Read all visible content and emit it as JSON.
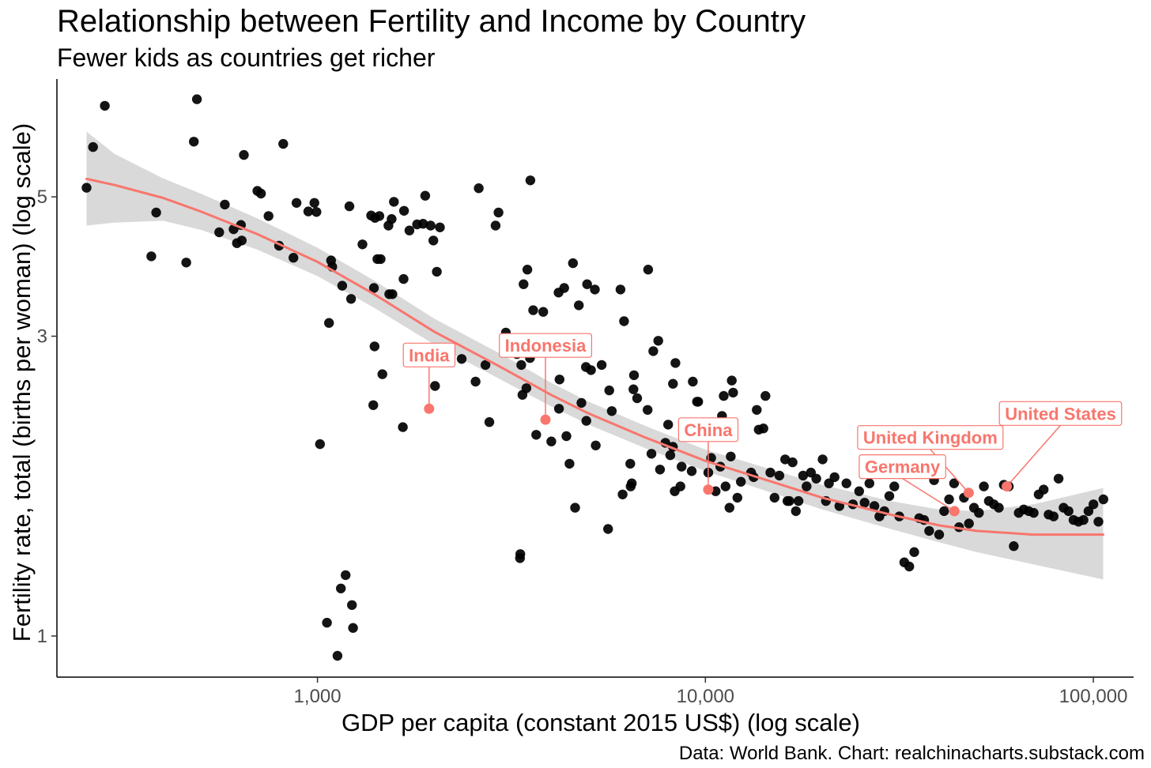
{
  "chart_data": {
    "type": "scatter",
    "title": "Relationship between Fertility and Income by Country",
    "subtitle": "Fewer kids as countries get richer",
    "xlabel": "GDP per capita (constant 2015 US$) (log scale)",
    "ylabel": "Fertility rate, total (births per woman) (log scale)",
    "caption": "Data: World Bank. Chart: realchinacharts.substack.com",
    "x_scale": "log",
    "y_scale": "log",
    "xlim": [
      213,
      127000
    ],
    "ylim": [
      0.86,
      7.7
    ],
    "x_ticks": [
      {
        "value": 1000,
        "label": "1,000"
      },
      {
        "value": 10000,
        "label": "10,000"
      },
      {
        "value": 100000,
        "label": "100,000"
      }
    ],
    "y_ticks": [
      {
        "value": 1,
        "label": "1"
      },
      {
        "value": 3,
        "label": "3"
      },
      {
        "value": 5,
        "label": "5"
      }
    ],
    "grid": false,
    "colors": {
      "points": "#000000",
      "trend": "#f8766d",
      "band": "#d9d9d9",
      "highlight": "#f8766d"
    },
    "points": [
      [
        254,
        5.17
      ],
      [
        264,
        6.0
      ],
      [
        283,
        6.98
      ],
      [
        373,
        4.02
      ],
      [
        384,
        4.72
      ],
      [
        459,
        3.93
      ],
      [
        480,
        6.12
      ],
      [
        489,
        7.15
      ],
      [
        558,
        4.39
      ],
      [
        577,
        4.86
      ],
      [
        608,
        4.44
      ],
      [
        620,
        4.22
      ],
      [
        635,
        4.51
      ],
      [
        638,
        4.26
      ],
      [
        646,
        5.83
      ],
      [
        700,
        5.11
      ],
      [
        715,
        5.06
      ],
      [
        748,
        4.66
      ],
      [
        796,
        4.18
      ],
      [
        816,
        6.07
      ],
      [
        867,
        4.0
      ],
      [
        883,
        4.89
      ],
      [
        947,
        4.74
      ],
      [
        982,
        4.89
      ],
      [
        994,
        4.73
      ],
      [
        1015,
        2.02
      ],
      [
        1071,
        3.15
      ],
      [
        1084,
        3.96
      ],
      [
        1092,
        3.87
      ],
      [
        1158,
        3.61
      ],
      [
        1209,
        4.83
      ],
      [
        1221,
        3.44
      ],
      [
        1306,
        4.2
      ],
      [
        1375,
        4.67
      ],
      [
        1393,
        2.33
      ],
      [
        1398,
        3.58
      ],
      [
        1403,
        2.89
      ],
      [
        1407,
        4.63
      ],
      [
        1427,
        3.98
      ],
      [
        1444,
        4.66
      ],
      [
        1455,
        3.98
      ],
      [
        1470,
        2.61
      ],
      [
        1524,
        4.5
      ],
      [
        1531,
        3.5
      ],
      [
        1553,
        4.61
      ],
      [
        1560,
        3.5
      ],
      [
        1574,
        4.91
      ],
      [
        1660,
        2.15
      ],
      [
        1667,
        3.7
      ],
      [
        1672,
        4.75
      ],
      [
        1726,
        4.42
      ],
      [
        1806,
        4.52
      ],
      [
        1872,
        4.53
      ],
      [
        1896,
        5.02
      ],
      [
        1957,
        4.5
      ],
      [
        1990,
        4.26
      ],
      [
        2009,
        2.5
      ],
      [
        2031,
        3.8
      ],
      [
        2069,
        4.47
      ],
      [
        2354,
        2.76
      ],
      [
        2556,
        2.54
      ],
      [
        2605,
        5.16
      ],
      [
        2711,
        2.7
      ],
      [
        2773,
        2.19
      ],
      [
        2878,
        4.5
      ],
      [
        2928,
        4.72
      ],
      [
        3060,
        3.04
      ],
      [
        3135,
        2.88
      ],
      [
        3267,
        2.81
      ],
      [
        3327,
        1.33
      ],
      [
        3334,
        1.35
      ],
      [
        3352,
        2.7
      ],
      [
        3376,
        2.42
      ],
      [
        3399,
        3.63
      ],
      [
        3456,
        2.48
      ],
      [
        3476,
        3.83
      ],
      [
        3530,
        2.77
      ],
      [
        3538,
        5.31
      ],
      [
        3598,
        3.3
      ],
      [
        3663,
        2.09
      ],
      [
        3757,
        2.83
      ],
      [
        3819,
        3.28
      ],
      [
        4007,
        2.04
      ],
      [
        4183,
        3.52
      ],
      [
        4193,
        2.3
      ],
      [
        4207,
        2.56
      ],
      [
        4325,
        3.58
      ],
      [
        4383,
        2.08
      ],
      [
        4464,
        1.88
      ],
      [
        4557,
        3.92
      ],
      [
        4614,
        1.6
      ],
      [
        4717,
        3.36
      ],
      [
        4792,
        2.35
      ],
      [
        4920,
        2.68
      ],
      [
        4932,
        2.2
      ],
      [
        4955,
        3.63
      ],
      [
        5070,
        2.65
      ],
      [
        5190,
        3.56
      ],
      [
        5216,
        2.01
      ],
      [
        5403,
        2.7
      ],
      [
        5612,
        1.48
      ],
      [
        5651,
        2.46
      ],
      [
        5737,
        2.28
      ],
      [
        6040,
        3.56
      ],
      [
        6118,
        1.68
      ],
      [
        6169,
        3.17
      ],
      [
        6402,
        1.88
      ],
      [
        6418,
        1.73
      ],
      [
        6461,
        1.75
      ],
      [
        6524,
        2.47
      ],
      [
        6545,
        2.6
      ],
      [
        6668,
        2.39
      ],
      [
        7096,
        2.29
      ],
      [
        7120,
        3.83
      ],
      [
        7262,
        1.95
      ],
      [
        7338,
        2.84
      ],
      [
        7559,
        2.95
      ],
      [
        7638,
        1.84
      ],
      [
        7887,
        2.03
      ],
      [
        8016,
        2.17
      ],
      [
        8120,
        1.94
      ],
      [
        8245,
        2.0
      ],
      [
        8248,
        2.52
      ],
      [
        8333,
        1.7
      ],
      [
        8368,
        2.72
      ],
      [
        8622,
        1.73
      ],
      [
        8682,
        1.86
      ],
      [
        9219,
        1.83
      ],
      [
        9281,
        2.54
      ],
      [
        9515,
        2.36
      ],
      [
        9580,
        2.36
      ],
      [
        10173,
        1.82
      ],
      [
        10349,
        1.92
      ],
      [
        10629,
        1.7
      ],
      [
        10928,
        1.86
      ],
      [
        11032,
        2.24
      ],
      [
        11150,
        2.41
      ],
      [
        11271,
        1.73
      ],
      [
        11538,
        1.6
      ],
      [
        11624,
        1.93
      ],
      [
        11698,
        2.55
      ],
      [
        11788,
        2.44
      ],
      [
        12090,
        1.66
      ],
      [
        12345,
        1.76
      ],
      [
        13112,
        1.82
      ],
      [
        13321,
        1.79
      ],
      [
        13565,
        2.29
      ],
      [
        13727,
        2.13
      ],
      [
        14111,
        2.14
      ],
      [
        14281,
        2.41
      ],
      [
        14707,
        1.82
      ],
      [
        15073,
        1.66
      ],
      [
        15512,
        1.8
      ],
      [
        16050,
        1.91
      ],
      [
        16276,
        1.64
      ],
      [
        16456,
        1.64
      ],
      [
        16774,
        1.89
      ],
      [
        17111,
        1.58
      ],
      [
        17379,
        1.64
      ],
      [
        17856,
        1.8
      ],
      [
        18234,
        1.73
      ],
      [
        18707,
        1.82
      ],
      [
        19314,
        1.78
      ],
      [
        20053,
        1.91
      ],
      [
        20451,
        1.64
      ],
      [
        20818,
        1.75
      ],
      [
        21520,
        1.79
      ],
      [
        22145,
        1.61
      ],
      [
        23098,
        1.75
      ],
      [
        24004,
        1.62
      ],
      [
        24901,
        1.7
      ],
      [
        25719,
        1.63
      ],
      [
        26473,
        1.75
      ],
      [
        27267,
        1.61
      ],
      [
        28084,
        1.55
      ],
      [
        28925,
        1.58
      ],
      [
        29792,
        1.67
      ],
      [
        30686,
        1.73
      ],
      [
        31607,
        1.55
      ],
      [
        32554,
        1.31
      ],
      [
        33530,
        1.29
      ],
      [
        34534,
        1.36
      ],
      [
        35571,
        1.54
      ],
      [
        36632,
        1.53
      ],
      [
        37736,
        1.47
      ],
      [
        38866,
        1.77
      ],
      [
        40034,
        1.45
      ],
      [
        41234,
        1.58
      ],
      [
        42473,
        1.65
      ],
      [
        43747,
        1.75
      ],
      [
        45059,
        1.49
      ],
      [
        46409,
        1.66
      ],
      [
        47798,
        1.51
      ],
      [
        49236,
        1.6
      ],
      [
        50710,
        1.57
      ],
      [
        52231,
        1.73
      ],
      [
        53798,
        1.64
      ],
      [
        55412,
        1.62
      ],
      [
        57074,
        1.6
      ],
      [
        58786,
        1.74
      ],
      [
        60548,
        1.73
      ],
      [
        62364,
        1.39
      ],
      [
        64238,
        1.57
      ],
      [
        66165,
        1.59
      ],
      [
        68148,
        1.58
      ],
      [
        70192,
        1.57
      ],
      [
        72302,
        1.68
      ],
      [
        74471,
        1.71
      ],
      [
        76705,
        1.56
      ],
      [
        79005,
        1.55
      ],
      [
        81375,
        1.78
      ],
      [
        83817,
        1.6
      ],
      [
        86331,
        1.58
      ],
      [
        88920,
        1.53
      ],
      [
        91588,
        1.52
      ],
      [
        94335,
        1.53
      ],
      [
        97166,
        1.58
      ],
      [
        100079,
        1.62
      ],
      [
        103082,
        1.52
      ],
      [
        106174,
        1.65
      ],
      [
        1058,
        1.05
      ],
      [
        1126,
        0.93
      ],
      [
        1149,
        1.19
      ],
      [
        1182,
        1.25
      ],
      [
        1227,
        1.12
      ],
      [
        1235,
        1.03
      ]
    ],
    "trend": [
      [
        254,
        5.34
      ],
      [
        300,
        5.22
      ],
      [
        400,
        4.98
      ],
      [
        500,
        4.74
      ],
      [
        700,
        4.36
      ],
      [
        1000,
        3.94
      ],
      [
        1400,
        3.5
      ],
      [
        2000,
        3.05
      ],
      [
        3000,
        2.67
      ],
      [
        4000,
        2.42
      ],
      [
        5000,
        2.26
      ],
      [
        7000,
        2.07
      ],
      [
        10000,
        1.9
      ],
      [
        14000,
        1.78
      ],
      [
        20000,
        1.66
      ],
      [
        30000,
        1.56
      ],
      [
        40000,
        1.5
      ],
      [
        50000,
        1.47
      ],
      [
        70000,
        1.45
      ],
      [
        106000,
        1.45
      ]
    ],
    "band_upper": [
      [
        254,
        6.35
      ],
      [
        300,
        5.85
      ],
      [
        400,
        5.35
      ],
      [
        500,
        5.06
      ],
      [
        700,
        4.62
      ],
      [
        1000,
        4.15
      ],
      [
        1400,
        3.68
      ],
      [
        2000,
        3.2
      ],
      [
        3000,
        2.8
      ],
      [
        4000,
        2.53
      ],
      [
        5000,
        2.36
      ],
      [
        7000,
        2.16
      ],
      [
        10000,
        1.98
      ],
      [
        14000,
        1.86
      ],
      [
        20000,
        1.74
      ],
      [
        30000,
        1.64
      ],
      [
        40000,
        1.59
      ],
      [
        50000,
        1.58
      ],
      [
        70000,
        1.62
      ],
      [
        106000,
        1.72
      ]
    ],
    "band_lower": [
      [
        254,
        4.5
      ],
      [
        300,
        4.55
      ],
      [
        400,
        4.58
      ],
      [
        500,
        4.43
      ],
      [
        700,
        4.12
      ],
      [
        1000,
        3.74
      ],
      [
        1400,
        3.33
      ],
      [
        2000,
        2.91
      ],
      [
        3000,
        2.55
      ],
      [
        4000,
        2.32
      ],
      [
        5000,
        2.17
      ],
      [
        7000,
        1.99
      ],
      [
        10000,
        1.83
      ],
      [
        14000,
        1.71
      ],
      [
        20000,
        1.59
      ],
      [
        30000,
        1.48
      ],
      [
        40000,
        1.41
      ],
      [
        50000,
        1.36
      ],
      [
        70000,
        1.3
      ],
      [
        106000,
        1.23
      ]
    ],
    "highlights": [
      {
        "name": "India",
        "x": 1940,
        "y": 2.3,
        "label_x": 1940,
        "label_y": 2.8
      },
      {
        "name": "Indonesia",
        "x": 3870,
        "y": 2.21,
        "label_x": 3870,
        "label_y": 2.9
      },
      {
        "name": "China",
        "x": 10170,
        "y": 1.71,
        "label_x": 10170,
        "label_y": 2.13
      },
      {
        "name": "United States",
        "x": 59840,
        "y": 1.73,
        "label_x": 82300,
        "label_y": 2.26
      },
      {
        "name": "United Kingdom",
        "x": 47730,
        "y": 1.69,
        "label_x": 38000,
        "label_y": 2.07
      },
      {
        "name": "Germany",
        "x": 43840,
        "y": 1.58,
        "label_x": 32200,
        "label_y": 1.86
      }
    ]
  }
}
